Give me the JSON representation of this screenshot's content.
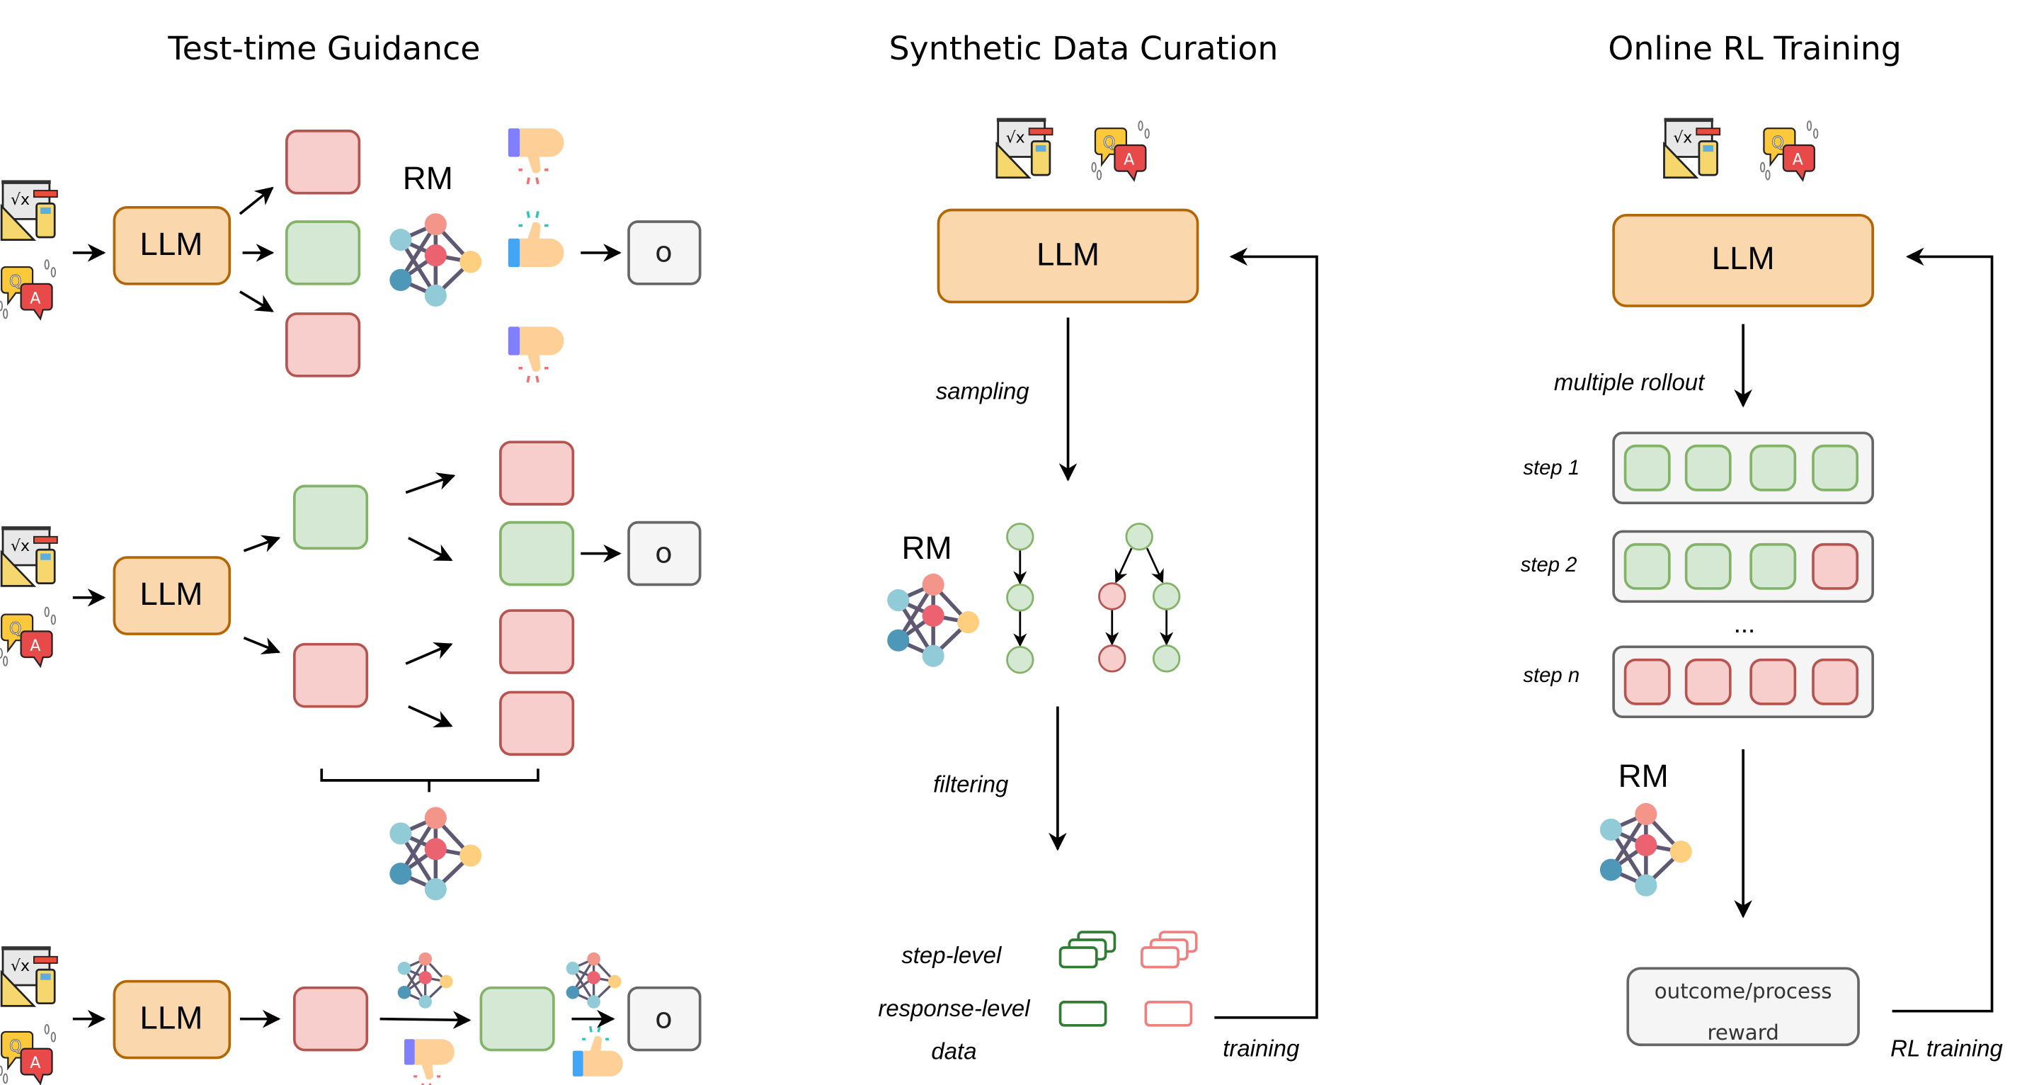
{
  "panels": {
    "test_time": {
      "title": "Test-time Guidance",
      "llm": "LLM",
      "rm": "RM",
      "output": "o"
    },
    "synthetic": {
      "title": "Synthetic Data Curation",
      "llm": "LLM",
      "rm": "RM",
      "sampling": "sampling",
      "filtering": "filtering",
      "step_level": "step-level",
      "response_level": "response-level",
      "data": "data",
      "training": "training"
    },
    "online_rl": {
      "title": "Online RL Training",
      "llm": "LLM",
      "rm": "RM",
      "multiple_rollout": "multiple rollout",
      "steps": [
        "step 1",
        "step 2",
        "step n"
      ],
      "ellipsis": "...",
      "reward_line1": "outcome/process",
      "reward_line2": "reward",
      "rl_training": "RL training"
    }
  },
  "colors": {
    "llm_fill": "#fad7ac",
    "llm_stroke": "#b46504",
    "good_fill": "#d5e8d4",
    "good_stroke": "#82b366",
    "bad_fill": "#f8cecc",
    "bad_stroke": "#b85450",
    "output_fill": "#f5f5f5",
    "output_stroke": "#666666",
    "tree_good": "#82b366",
    "tree_bad": "#b85450",
    "data_good": "#2e7d32",
    "data_bad": "#f08080"
  },
  "icons": [
    "math-problem-icon",
    "question-answer-icon",
    "reward-model-network-icon",
    "thumbs-up-icon",
    "thumbs-down-icon"
  ]
}
